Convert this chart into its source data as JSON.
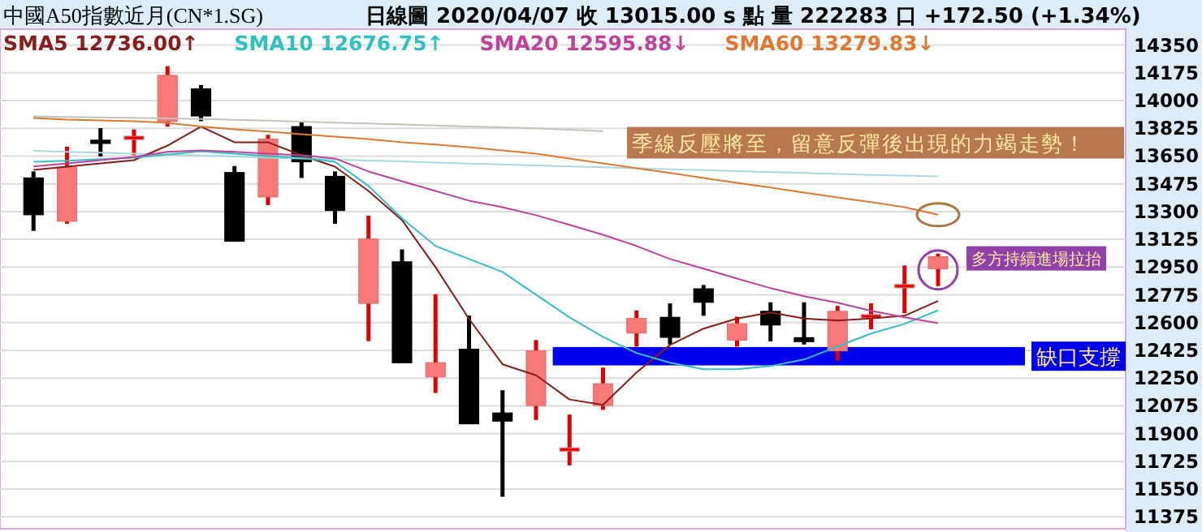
{
  "chart_data": {
    "type": "candlestick",
    "title": "中國A50指數近月(CN*1.SG)",
    "subtitle": "日線圖   2020/04/07  收 13015.00 s 點  量 222283 口  +172.50 (+1.34%)",
    "categories": [
      null,
      null,
      null,
      null,
      null,
      null,
      null,
      null,
      null,
      null,
      null,
      null,
      null,
      null,
      null,
      null,
      null,
      null,
      null,
      null,
      null,
      null,
      null,
      null,
      null,
      null,
      null,
      null
    ],
    "ohlc": [
      [
        13512,
        13553,
        13178,
        13280
      ],
      [
        13239,
        13709,
        13223,
        13580
      ],
      [
        13750,
        13826,
        13648,
        13730
      ],
      [
        13765,
        13818,
        13655,
        13775
      ],
      [
        13869,
        14217,
        13836,
        14159
      ],
      [
        14074,
        14098,
        13870,
        13903
      ],
      [
        13546,
        13587,
        13113,
        13113
      ],
      [
        13392,
        13784,
        13341,
        13757
      ],
      [
        13836,
        13863,
        13512,
        13614
      ],
      [
        13522,
        13553,
        13223,
        13307
      ],
      [
        12721,
        13274,
        12482,
        13127
      ],
      [
        12983,
        13062,
        12347,
        12347
      ],
      [
        12258,
        12779,
        12156,
        12347
      ],
      [
        12432,
        12643,
        11962,
        11962
      ],
      [
        12030,
        12173,
        11502,
        11979
      ],
      [
        12077,
        12490,
        11986,
        12422
      ],
      [
        11800,
        12020,
        11700,
        11810
      ],
      [
        12077,
        12316,
        12050,
        12214
      ],
      [
        12534,
        12677,
        12449,
        12626
      ],
      [
        12633,
        12721,
        12462,
        12507
      ],
      [
        12813,
        12837,
        12643,
        12728
      ],
      [
        12490,
        12637,
        12449,
        12592
      ],
      [
        12671,
        12728,
        12482,
        12585
      ],
      [
        12505,
        12728,
        12462,
        12480
      ],
      [
        12422,
        12705,
        12360,
        12671
      ],
      [
        12640,
        12721,
        12558,
        12650
      ],
      [
        12830,
        12960,
        12660,
        12840
      ],
      [
        12940,
        13035,
        12830,
        13015
      ]
    ],
    "colors": [
      "#000000",
      "#f87878",
      "#000000",
      "#e00000",
      "#f87878",
      "#000000",
      "#000000",
      "#f87878",
      "#000000",
      "#000000",
      "#f87878",
      "#000000",
      "#f87878",
      "#000000",
      "#000000",
      "#f87878",
      "#e00000",
      "#f87878",
      "#f87878",
      "#000000",
      "#000000",
      "#f87878",
      "#000000",
      "#000000",
      "#f87878",
      "#e00000",
      "#e00000",
      "#f87878"
    ],
    "series": [
      {
        "type": "line",
        "color": "#c8c0b8",
        "values": [
          13900,
          13897,
          13894,
          13891,
          13888,
          13884,
          13879,
          13873,
          13867,
          13861,
          13855,
          13849,
          13843,
          13837,
          13831,
          13825,
          13816,
          13807,
          null,
          null,
          null,
          null,
          null,
          null,
          null,
          null,
          null,
          null
        ]
      },
      {
        "type": "line",
        "color": "#a8d8e0",
        "values": [
          13683,
          13677,
          13671,
          13665,
          13659,
          13653,
          13647,
          13640,
          13634,
          13628,
          13622,
          13616,
          13609,
          13603,
          13597,
          13591,
          13585,
          13579,
          13573,
          13567,
          13561,
          13555,
          13549,
          13543,
          13537,
          13531,
          13527,
          13522
        ]
      },
      {
        "type": "line",
        "name": "SMA5 12736.00↑",
        "color": "#8b1a1a",
        "values": [
          13563,
          13583,
          13604,
          13624,
          13716,
          13836,
          13737,
          13737,
          13655,
          13583,
          13430,
          13246,
          12950,
          12623,
          12337,
          12268,
          12115,
          12081,
          12286,
          12459,
          12562,
          12626,
          12664,
          12626,
          12613,
          12626,
          12643,
          12736
        ]
      },
      {
        "type": "line",
        "name": "SMA10 12676.75↑",
        "color": "#30c0c0",
        "values": [
          13614,
          13620,
          13630,
          13640,
          13660,
          13680,
          13665,
          13650,
          13640,
          13614,
          13461,
          13257,
          13083,
          13001,
          12919,
          12776,
          12633,
          12510,
          12408,
          12347,
          12306,
          12306,
          12326,
          12367,
          12449,
          12531,
          12592,
          12677
        ]
      },
      {
        "type": "line",
        "name": "SMA20 12595.88↓",
        "color": "#c0409a",
        "values": [
          13584,
          13604,
          13624,
          13645,
          13676,
          13686,
          13676,
          13665,
          13655,
          13635,
          13553,
          13491,
          13430,
          13369,
          13328,
          13277,
          13216,
          13154,
          13083,
          13001,
          12940,
          12878,
          12817,
          12766,
          12725,
          12674,
          12633,
          12596
        ]
      },
      {
        "type": "line",
        "name": "SMA60 13279.83↓",
        "color": "#e07830",
        "values": [
          13890,
          13880,
          13875,
          13870,
          13859,
          13836,
          13819,
          13804,
          13788,
          13773,
          13757,
          13737,
          13722,
          13706,
          13686,
          13665,
          13634,
          13604,
          13573,
          13543,
          13512,
          13481,
          13451,
          13420,
          13389,
          13359,
          13328,
          13280
        ]
      }
    ],
    "ylim": [
      11300,
      14450
    ],
    "yticks": [
      11375,
      11550,
      11725,
      11900,
      12075,
      12250,
      12425,
      12600,
      12775,
      12950,
      13125,
      13300,
      13475,
      13650,
      13825,
      14000,
      14175,
      14350
    ],
    "grid": "y",
    "legend": "top",
    "tick_labels": "y",
    "bands": [
      {
        "axis": "y",
        "from": 12330,
        "to": 12446,
        "label": "缺口支撐",
        "color": "#0000ee"
      }
    ],
    "annotations": [
      "季線反壓將至，留意反彈後出現的力竭走勢！",
      "多方持續進場拉抬"
    ]
  }
}
